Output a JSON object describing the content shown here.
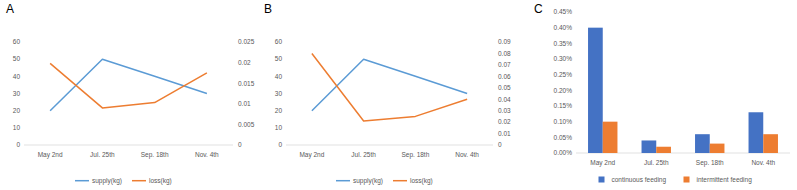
{
  "chart_data": [
    {
      "type": "line",
      "title": "A",
      "categories": [
        "May 2nd",
        "Jul. 25th",
        "Sep. 18th",
        "Nov. 4th"
      ],
      "series": [
        {
          "name": "supply(kg)",
          "color": "#5b9bd5",
          "values": [
            20,
            50,
            40,
            30
          ]
        },
        {
          "name": "loss(kg)",
          "color": "#ed7d31",
          "axis": "y2",
          "values": [
            0.0198,
            0.009,
            0.0103,
            0.0175
          ]
        }
      ],
      "ylim": [
        0,
        60
      ],
      "yticks": [
        0,
        10,
        20,
        30,
        40,
        50,
        60
      ],
      "y2lim": [
        0,
        0.025
      ],
      "y2ticks": [
        0,
        0.005,
        0.01,
        0.015,
        0.02,
        0.025
      ],
      "grid": false,
      "legend": "bottom"
    },
    {
      "type": "line",
      "title": "B",
      "categories": [
        "May 2nd",
        "Jul. 25th",
        "Sep. 18th",
        "Nov. 4th"
      ],
      "series": [
        {
          "name": "supply(kg)",
          "color": "#5b9bd5",
          "values": [
            20,
            50,
            40,
            30
          ]
        },
        {
          "name": "loss(kg)",
          "color": "#ed7d31",
          "axis": "y2",
          "values": [
            0.08,
            0.021,
            0.025,
            0.04
          ]
        }
      ],
      "ylim": [
        0,
        60
      ],
      "yticks": [
        0,
        10,
        20,
        30,
        40,
        50,
        60
      ],
      "y2lim": [
        0,
        0.09
      ],
      "y2ticks": [
        0,
        0.01,
        0.02,
        0.03,
        0.04,
        0.05,
        0.06,
        0.07,
        0.08,
        0.09
      ],
      "grid": false,
      "legend": "bottom"
    },
    {
      "type": "bar",
      "title": "C",
      "categories": [
        "May 2nd",
        "Jul. 25th",
        "Sep. 18th",
        "Nov. 4th"
      ],
      "series": [
        {
          "name": "continuous feeding",
          "color": "#4472c4",
          "values": [
            0.4,
            0.04,
            0.06,
            0.13
          ]
        },
        {
          "name": "intermittent feeding",
          "color": "#ed7d31",
          "values": [
            0.1,
            0.02,
            0.03,
            0.06
          ]
        }
      ],
      "ylim": [
        0,
        0.45
      ],
      "yticks": [
        {
          "value": 0,
          "label": "0.00%"
        },
        {
          "value": 0.05,
          "label": "0.05%"
        },
        {
          "value": 0.1,
          "label": "0.10%"
        },
        {
          "value": 0.15,
          "label": "0.15%"
        },
        {
          "value": 0.2,
          "label": "0.20%"
        },
        {
          "value": 0.25,
          "label": "0.25%"
        },
        {
          "value": 0.3,
          "label": "0.30%"
        },
        {
          "value": 0.35,
          "label": "0.35%"
        },
        {
          "value": 0.4,
          "label": "0.40%"
        },
        {
          "value": 0.45,
          "label": "0.45%"
        }
      ],
      "grid": false,
      "legend": "bottom"
    }
  ]
}
